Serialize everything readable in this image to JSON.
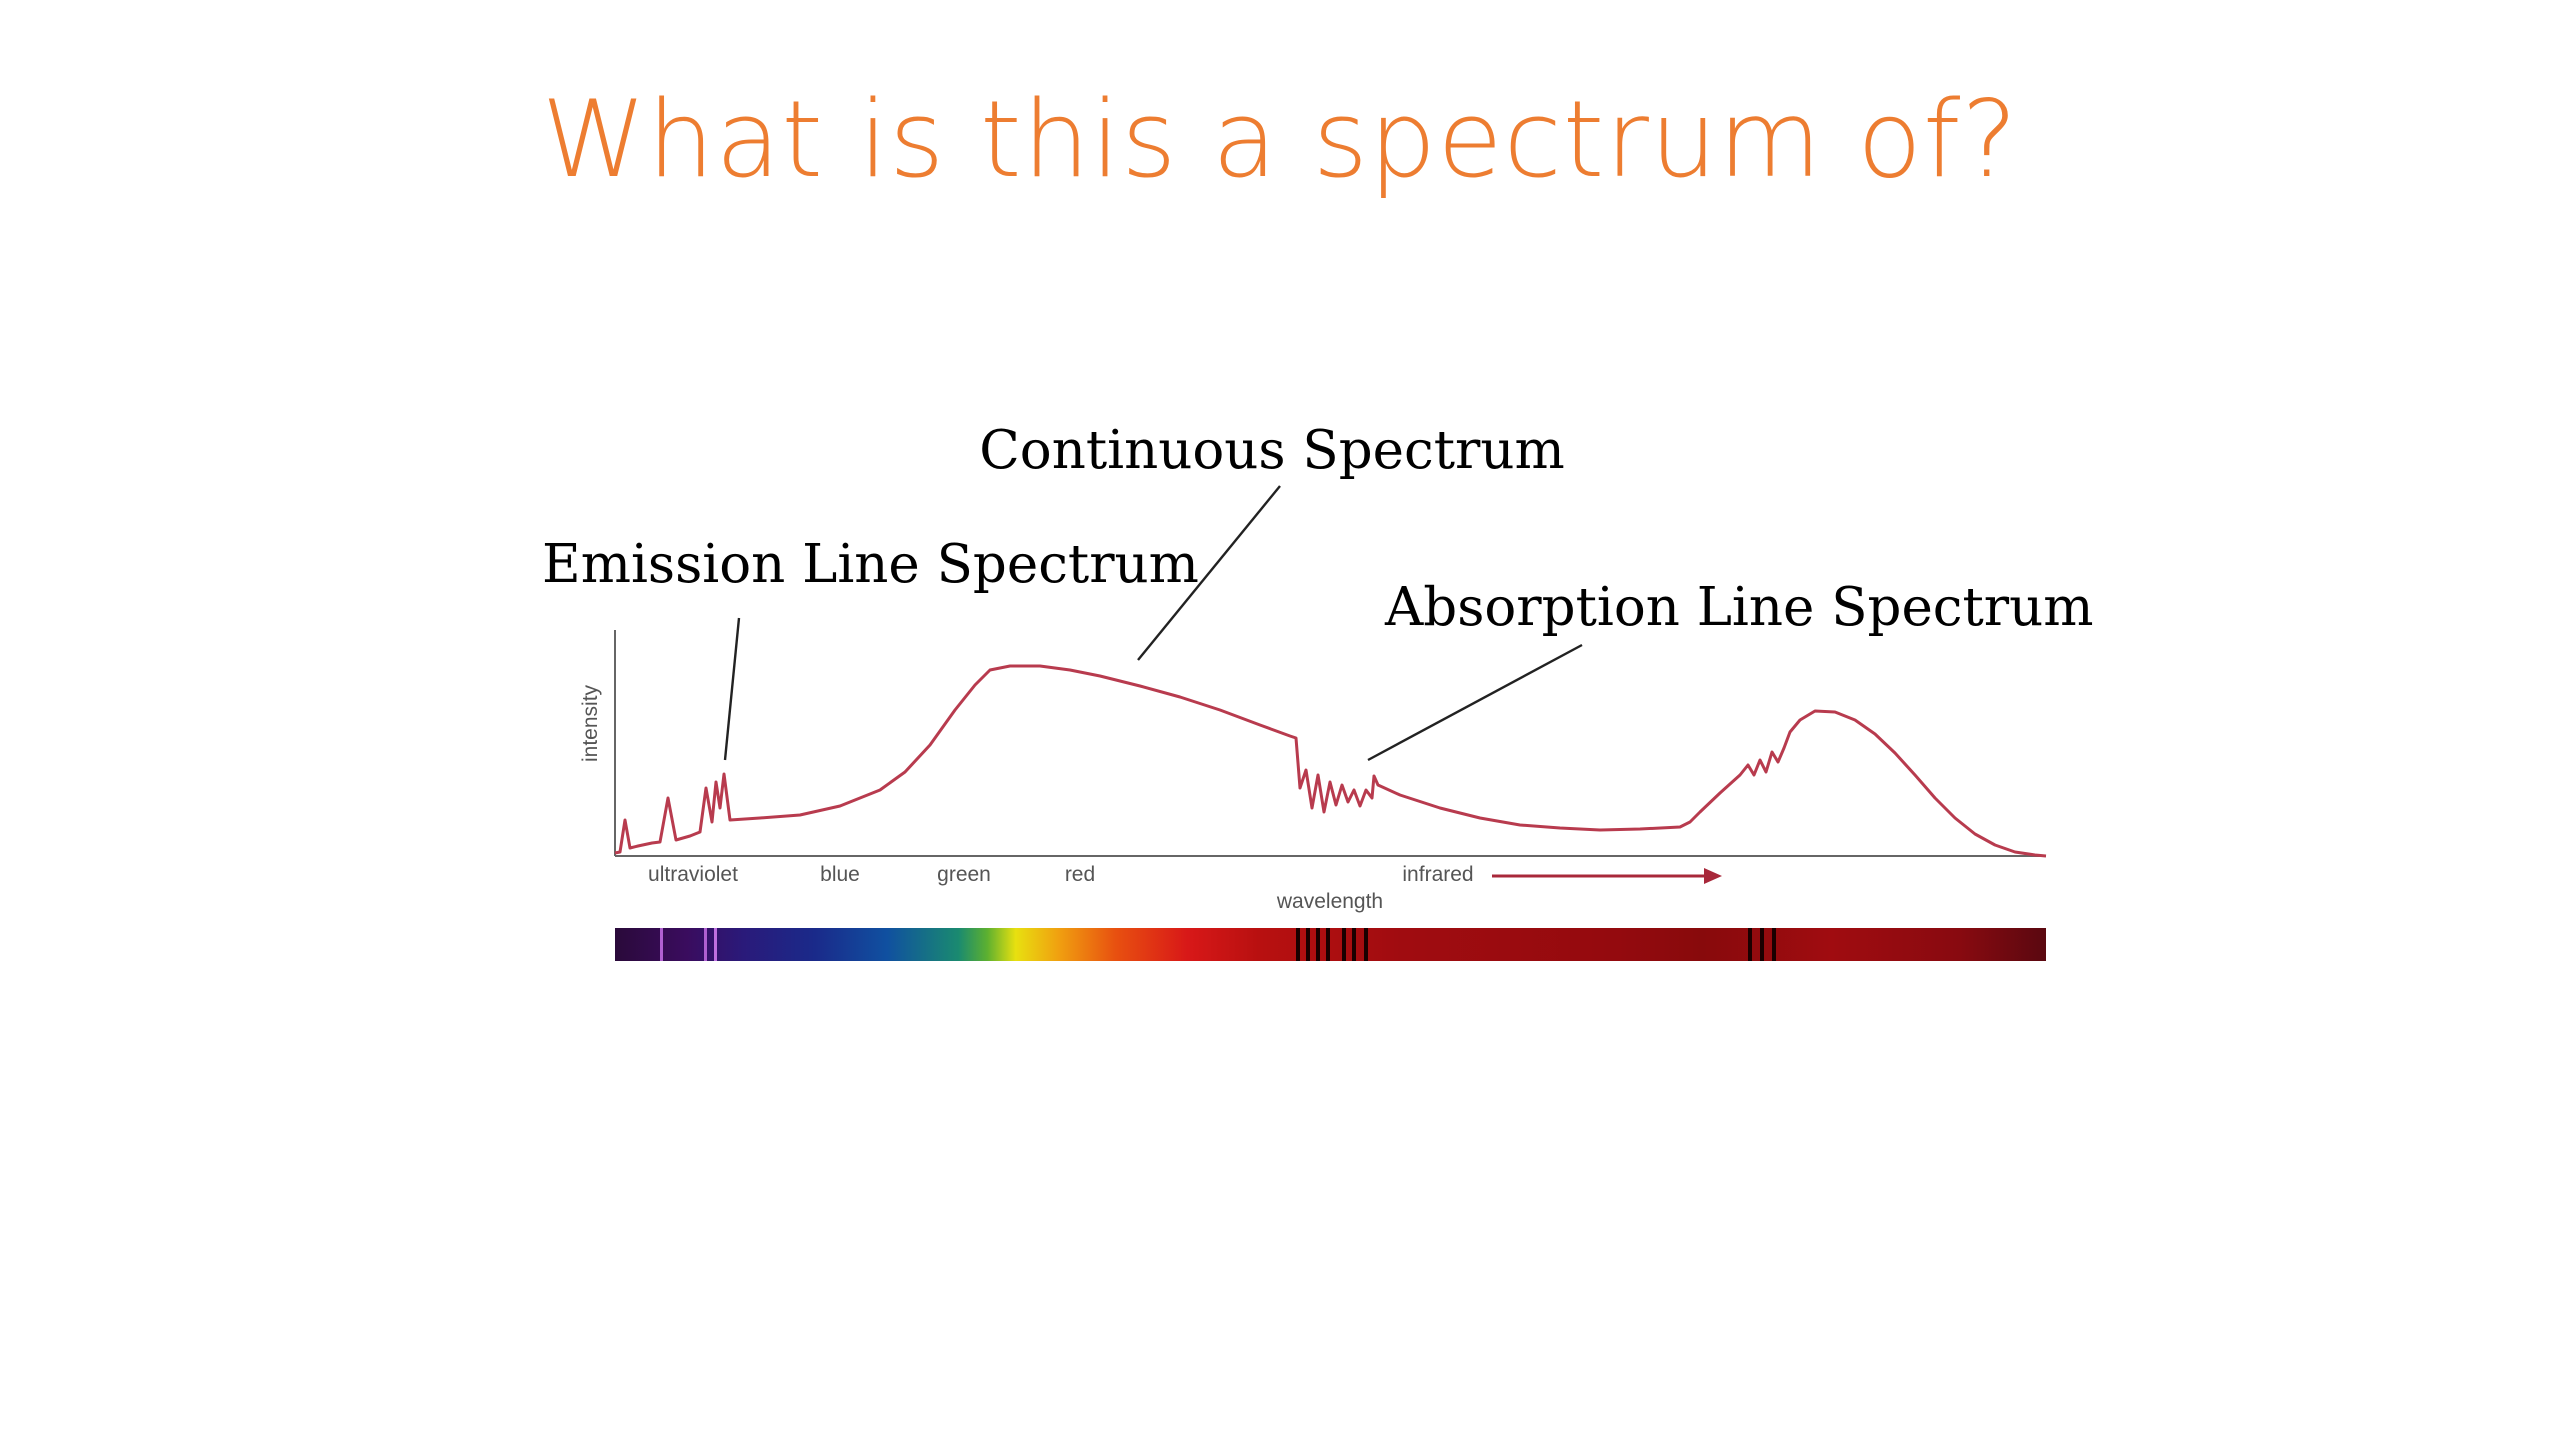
{
  "slide": {
    "title": "What is this a spectrum of?",
    "title_color": "#ED7D31"
  },
  "figure": {
    "callouts": {
      "emission": "Emission Line Spectrum",
      "continuous": "Continuous Spectrum",
      "absorption": "Absorption Line Spectrum"
    },
    "axis": {
      "y_label": "intensity",
      "x_label": "wavelength",
      "regions": [
        "ultraviolet",
        "blue",
        "green",
        "red",
        "infrared"
      ]
    },
    "curve_color": "#B83B4E",
    "arrow_color": "#A8283A"
  }
}
